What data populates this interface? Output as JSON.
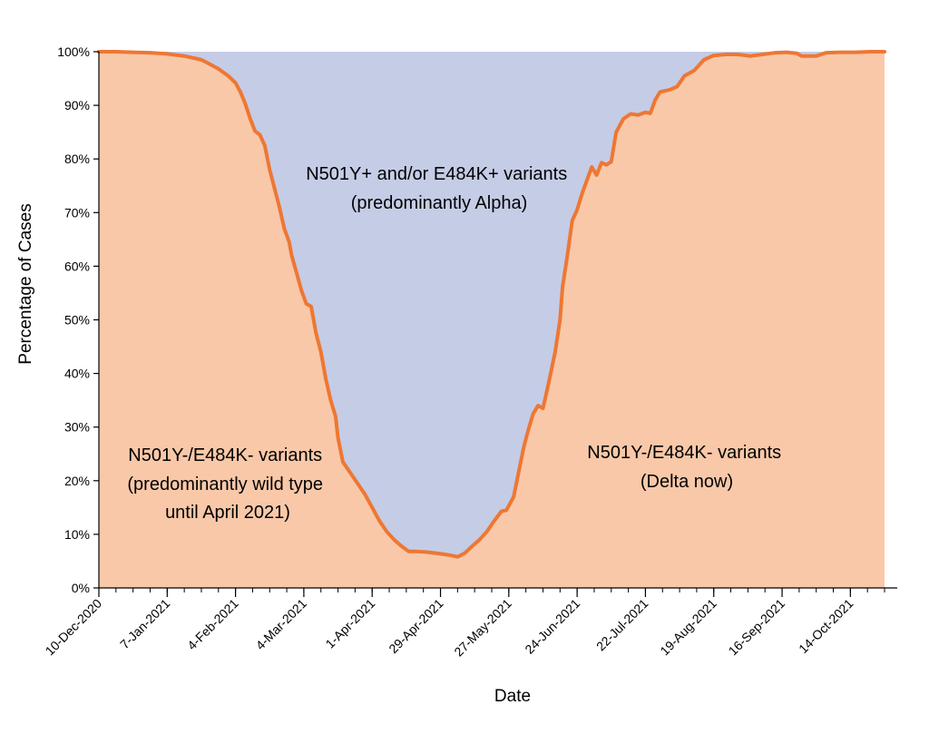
{
  "chart_data": {
    "type": "area",
    "stacked": true,
    "title": "",
    "xlabel": "Date",
    "ylabel": "Percentage of Cases",
    "xlim": [
      "2020-12-10",
      "2021-10-28"
    ],
    "ylim": [
      0,
      100
    ],
    "y_ticks": [
      0,
      10,
      20,
      30,
      40,
      50,
      60,
      70,
      80,
      90,
      100
    ],
    "y_tick_labels": [
      "0%",
      "10%",
      "20%",
      "30%",
      "40%",
      "50%",
      "60%",
      "70%",
      "80%",
      "90%",
      "100%"
    ],
    "x_ticks": [
      "2020-12-10",
      "2021-01-07",
      "2021-02-04",
      "2021-03-04",
      "2021-04-01",
      "2021-04-29",
      "2021-05-27",
      "2021-06-24",
      "2021-07-22",
      "2021-08-19",
      "2021-09-16",
      "2021-10-14"
    ],
    "x_tick_labels": [
      "10-Dec-2020",
      "7-Jan-2021",
      "4-Feb-2021",
      "4-Mar-2021",
      "1-Apr-2021",
      "29-Apr-2021",
      "27-May-2021",
      "24-Jun-2021",
      "22-Jul-2021",
      "19-Aug-2021",
      "16-Sep-2021",
      "14-Oct-2021"
    ],
    "grid": false,
    "legend": "none",
    "colors": {
      "wild_area": "#f8c8a8",
      "alpha_area": "#c5cce6",
      "line": "#ee7733",
      "axis": "#000000"
    },
    "series": [
      {
        "values_desc": "percentage of cases that are N501Y-/E484K-",
        "points": [
          [
            "2020-12-10",
            100
          ],
          [
            "2020-12-17",
            100
          ],
          [
            "2020-12-24",
            99.9
          ],
          [
            "2020-12-31",
            99.8
          ],
          [
            "2021-01-07",
            99.6
          ],
          [
            "2021-01-14",
            99.2
          ],
          [
            "2021-01-21",
            98.5
          ],
          [
            "2021-01-24",
            97.8
          ],
          [
            "2021-01-28",
            96.8
          ],
          [
            "2021-02-01",
            95.5
          ],
          [
            "2021-02-04",
            94.2
          ],
          [
            "2021-02-06",
            92.5
          ],
          [
            "2021-02-08",
            90.3
          ],
          [
            "2021-02-10",
            87.5
          ],
          [
            "2021-02-12",
            85.2
          ],
          [
            "2021-02-14",
            84.5
          ],
          [
            "2021-02-16",
            82.5
          ],
          [
            "2021-02-18",
            78
          ],
          [
            "2021-02-20",
            74.5
          ],
          [
            "2021-02-22",
            71
          ],
          [
            "2021-02-24",
            67
          ],
          [
            "2021-02-26",
            64.5
          ],
          [
            "2021-02-27",
            62
          ],
          [
            "2021-03-01",
            58.8
          ],
          [
            "2021-03-03",
            55.5
          ],
          [
            "2021-03-05",
            53
          ],
          [
            "2021-03-07",
            52.5
          ],
          [
            "2021-03-09",
            47.5
          ],
          [
            "2021-03-11",
            44
          ],
          [
            "2021-03-13",
            39
          ],
          [
            "2021-03-15",
            35
          ],
          [
            "2021-03-17",
            32
          ],
          [
            "2021-03-18",
            28
          ],
          [
            "2021-03-20",
            23.5
          ],
          [
            "2021-03-23",
            21.5
          ],
          [
            "2021-03-26",
            19.5
          ],
          [
            "2021-03-29",
            17.5
          ],
          [
            "2021-04-01",
            15
          ],
          [
            "2021-04-04",
            12.5
          ],
          [
            "2021-04-07",
            10.5
          ],
          [
            "2021-04-10",
            9
          ],
          [
            "2021-04-13",
            7.8
          ],
          [
            "2021-04-16",
            6.8
          ],
          [
            "2021-04-19",
            6.8
          ],
          [
            "2021-04-23",
            6.7
          ],
          [
            "2021-04-27",
            6.5
          ],
          [
            "2021-04-30",
            6.3
          ],
          [
            "2021-05-03",
            6.1
          ],
          [
            "2021-05-06",
            5.8
          ],
          [
            "2021-05-09",
            6.5
          ],
          [
            "2021-05-12",
            7.8
          ],
          [
            "2021-05-15",
            9
          ],
          [
            "2021-05-18",
            10.5
          ],
          [
            "2021-05-21",
            12.5
          ],
          [
            "2021-05-24",
            14.3
          ],
          [
            "2021-05-26",
            14.5
          ],
          [
            "2021-05-29",
            17
          ],
          [
            "2021-05-31",
            21.5
          ],
          [
            "2021-06-02",
            26
          ],
          [
            "2021-06-04",
            29.5
          ],
          [
            "2021-06-06",
            32.5
          ],
          [
            "2021-06-08",
            34
          ],
          [
            "2021-06-10",
            33.5
          ],
          [
            "2021-06-12",
            37.5
          ],
          [
            "2021-06-15",
            44
          ],
          [
            "2021-06-17",
            50
          ],
          [
            "2021-06-18",
            56
          ],
          [
            "2021-06-20",
            62
          ],
          [
            "2021-06-22",
            68.5
          ],
          [
            "2021-06-24",
            70.5
          ],
          [
            "2021-06-26",
            73.5
          ],
          [
            "2021-06-28",
            76
          ],
          [
            "2021-06-30",
            78.5
          ],
          [
            "2021-07-02",
            77
          ],
          [
            "2021-07-04",
            79.3
          ],
          [
            "2021-07-06",
            78.9
          ],
          [
            "2021-07-08",
            79.5
          ],
          [
            "2021-07-10",
            85
          ],
          [
            "2021-07-13",
            87.5
          ],
          [
            "2021-07-16",
            88.4
          ],
          [
            "2021-07-19",
            88.2
          ],
          [
            "2021-07-22",
            88.7
          ],
          [
            "2021-07-24",
            88.5
          ],
          [
            "2021-07-26",
            91
          ],
          [
            "2021-07-28",
            92.5
          ],
          [
            "2021-08-01",
            92.9
          ],
          [
            "2021-08-04",
            93.5
          ],
          [
            "2021-08-07",
            95.5
          ],
          [
            "2021-08-11",
            96.5
          ],
          [
            "2021-08-15",
            98.5
          ],
          [
            "2021-08-19",
            99.3
          ],
          [
            "2021-08-24",
            99.5
          ],
          [
            "2021-08-29",
            99.5
          ],
          [
            "2021-09-03",
            99.2
          ],
          [
            "2021-09-08",
            99.5
          ],
          [
            "2021-09-13",
            99.8
          ],
          [
            "2021-09-18",
            99.9
          ],
          [
            "2021-09-22",
            99.7
          ],
          [
            "2021-09-24",
            99.2
          ],
          [
            "2021-09-30",
            99.2
          ],
          [
            "2021-10-04",
            99.8
          ],
          [
            "2021-10-10",
            99.9
          ],
          [
            "2021-10-16",
            99.9
          ],
          [
            "2021-10-22",
            100
          ],
          [
            "2021-10-28",
            100
          ]
        ]
      }
    ],
    "annotations": [
      {
        "lines": [
          "N501Y+ and/or E484K+ variants",
          "(predominantly Alpha)"
        ]
      },
      {
        "lines": [
          "N501Y-/E484K- variants",
          "(predominantly wild type",
          "until April 2021)"
        ]
      },
      {
        "lines": [
          "N501Y-/E484K- variants",
          "(Delta now)"
        ]
      }
    ]
  }
}
